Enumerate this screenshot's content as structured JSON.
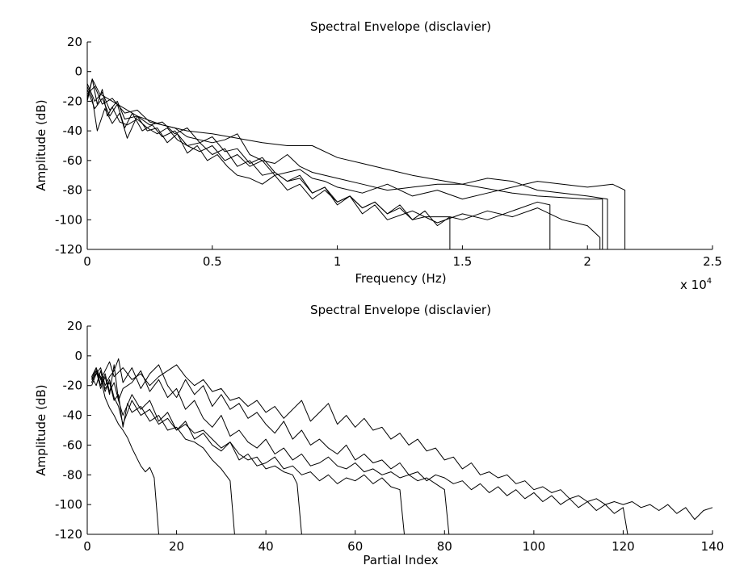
{
  "chart_data": [
    {
      "type": "line",
      "title": "Spectral Envelope (disclavier)",
      "xlabel": "Frequency (Hz)",
      "ylabel": "Amplitude (dB)",
      "x_multiplier": "x 10",
      "x_multiplier_exp": "4",
      "xlim": [
        0,
        2.5
      ],
      "ylim": [
        -120,
        20
      ],
      "xticks": [
        0,
        0.5,
        1,
        1.5,
        2,
        2.5
      ],
      "xtick_labels": [
        "0",
        "0.5",
        "1",
        "1.5",
        "2",
        "2.5"
      ],
      "yticks": [
        20,
        0,
        -20,
        -40,
        -60,
        -80,
        -100,
        -120
      ],
      "ytick_labels": [
        "20",
        "0",
        "-20",
        "-40",
        "-60",
        "-80",
        "-100",
        "-120"
      ],
      "series": [
        {
          "x": [
            0.0,
            0.02,
            0.05,
            0.1,
            0.15,
            0.2,
            0.25,
            0.3,
            0.35,
            0.4,
            0.5,
            0.6,
            0.7,
            0.8,
            0.9,
            1.0,
            1.1,
            1.2,
            1.3,
            1.4,
            1.5,
            1.6,
            1.7,
            1.8,
            1.9,
            2.0,
            2.06,
            2.06
          ],
          "y": [
            -20,
            -5,
            -15,
            -20,
            -25,
            -30,
            -33,
            -36,
            -38,
            -40,
            -42,
            -45,
            -48,
            -50,
            -50,
            -58,
            -62,
            -66,
            -70,
            -73,
            -76,
            -79,
            -82,
            -84,
            -85,
            -86,
            -86,
            -120
          ]
        },
        {
          "x": [
            0.0,
            0.03,
            0.06,
            0.1,
            0.15,
            0.2,
            0.25,
            0.3,
            0.35,
            0.4,
            0.45,
            0.5,
            0.55,
            0.6,
            0.65,
            0.7,
            0.75,
            0.8,
            0.85,
            0.9,
            1.0,
            1.1,
            1.2,
            1.3,
            1.4,
            1.5,
            1.6,
            1.7,
            1.8,
            1.9,
            2.0,
            2.08,
            2.08
          ],
          "y": [
            -15,
            -10,
            -22,
            -18,
            -28,
            -26,
            -34,
            -36,
            -38,
            -44,
            -46,
            -48,
            -46,
            -42,
            -56,
            -60,
            -62,
            -56,
            -64,
            -68,
            -72,
            -76,
            -80,
            -78,
            -76,
            -76,
            -72,
            -74,
            -80,
            -82,
            -84,
            -86,
            -120
          ]
        },
        {
          "x": [
            0.0,
            0.02,
            0.04,
            0.07,
            0.1,
            0.13,
            0.16,
            0.2,
            0.24,
            0.28,
            0.32,
            0.36,
            0.4,
            0.44,
            0.48,
            0.52,
            0.56,
            0.6,
            0.65,
            0.7,
            0.75,
            0.8,
            0.85,
            0.9,
            0.95,
            1.0,
            1.05,
            1.1,
            1.15,
            1.2,
            1.25,
            1.3,
            1.35,
            1.4,
            1.45,
            1.45
          ],
          "y": [
            -10,
            -18,
            -40,
            -25,
            -35,
            -28,
            -45,
            -30,
            -40,
            -38,
            -48,
            -42,
            -55,
            -50,
            -60,
            -56,
            -64,
            -70,
            -72,
            -76,
            -70,
            -80,
            -76,
            -86,
            -80,
            -88,
            -84,
            -92,
            -88,
            -96,
            -92,
            -100,
            -98,
            -98,
            -98,
            -120
          ]
        },
        {
          "x": [
            0.0,
            0.03,
            0.06,
            0.09,
            0.12,
            0.15,
            0.18,
            0.22,
            0.26,
            0.3,
            0.35,
            0.4,
            0.45,
            0.5,
            0.55,
            0.6,
            0.65,
            0.7,
            0.75,
            0.8,
            0.85,
            0.9,
            0.95,
            1.0,
            1.05,
            1.1,
            1.15,
            1.2,
            1.3,
            1.4,
            1.5,
            1.6,
            1.7,
            1.8,
            1.85,
            1.85
          ],
          "y": [
            -12,
            -25,
            -18,
            -30,
            -22,
            -38,
            -28,
            -40,
            -36,
            -44,
            -40,
            -50,
            -48,
            -56,
            -52,
            -64,
            -60,
            -70,
            -68,
            -74,
            -72,
            -82,
            -78,
            -90,
            -84,
            -96,
            -90,
            -100,
            -94,
            -102,
            -96,
            -100,
            -94,
            -88,
            -90,
            -120
          ]
        },
        {
          "x": [
            0.0,
            0.03,
            0.06,
            0.09,
            0.12,
            0.15,
            0.2,
            0.25,
            0.3,
            0.35,
            0.4,
            0.45,
            0.5,
            0.55,
            0.6,
            0.65,
            0.7,
            0.75,
            0.8,
            0.85,
            0.9,
            0.95,
            1.0,
            1.05,
            1.1,
            1.15,
            1.2,
            1.25,
            1.3,
            1.35,
            1.4,
            1.45,
            1.5,
            1.6,
            1.7,
            1.8,
            1.9,
            2.0,
            2.05,
            2.05
          ],
          "y": [
            -8,
            -20,
            -14,
            -26,
            -20,
            -32,
            -30,
            -36,
            -34,
            -42,
            -38,
            -48,
            -44,
            -54,
            -52,
            -62,
            -58,
            -68,
            -74,
            -70,
            -82,
            -78,
            -88,
            -84,
            -92,
            -88,
            -96,
            -90,
            -100,
            -94,
            -104,
            -98,
            -100,
            -94,
            -98,
            -92,
            -100,
            -104,
            -112,
            -120
          ]
        },
        {
          "x": [
            0.0,
            0.02,
            0.04,
            0.06,
            0.08,
            0.1,
            0.13,
            0.16,
            0.2,
            0.24,
            0.28,
            0.32,
            0.36,
            0.4,
            0.45,
            0.5,
            0.55,
            0.6,
            0.65,
            0.7,
            0.75,
            0.8,
            0.85,
            0.9,
            0.95,
            1.0,
            1.1,
            1.2,
            1.3,
            1.4,
            1.5,
            1.6,
            1.7,
            1.8,
            1.9,
            2.0,
            2.1,
            2.15,
            2.15
          ],
          "y": [
            -18,
            -5,
            -22,
            -12,
            -30,
            -24,
            -34,
            -36,
            -32,
            -38,
            -42,
            -38,
            -46,
            -50,
            -54,
            -50,
            -60,
            -56,
            -64,
            -60,
            -70,
            -68,
            -66,
            -72,
            -74,
            -78,
            -82,
            -76,
            -84,
            -80,
            -86,
            -82,
            -78,
            -74,
            -76,
            -78,
            -76,
            -80,
            -120
          ]
        }
      ]
    },
    {
      "type": "line",
      "title": "Spectral Envelope (disclavier)",
      "xlabel": "Partial Index",
      "ylabel": "Amplitude (dB)",
      "xlim": [
        0,
        140
      ],
      "ylim": [
        -120,
        20
      ],
      "xticks": [
        0,
        20,
        40,
        60,
        80,
        100,
        120,
        140
      ],
      "xtick_labels": [
        "0",
        "20",
        "40",
        "60",
        "80",
        "100",
        "120",
        "140"
      ],
      "yticks": [
        20,
        0,
        -20,
        -40,
        -60,
        -80,
        -100,
        -120
      ],
      "ytick_labels": [
        "20",
        "0",
        "-20",
        "-40",
        "-60",
        "-80",
        "-100",
        "-120"
      ],
      "series": [
        {
          "x": [
            1,
            2,
            3,
            4,
            5,
            6,
            7,
            8,
            9,
            10,
            11,
            12,
            13,
            14,
            15,
            16
          ],
          "y": [
            -20,
            -12,
            -15,
            -28,
            -35,
            -40,
            -46,
            -50,
            -55,
            -62,
            -68,
            -74,
            -78,
            -75,
            -82,
            -120
          ]
        },
        {
          "x": [
            1,
            2,
            3,
            4,
            5,
            6,
            7,
            8,
            9,
            10,
            12,
            14,
            16,
            18,
            20,
            22,
            24,
            26,
            28,
            30,
            31,
            32,
            33
          ],
          "y": [
            -18,
            -10,
            -14,
            -22,
            -18,
            -30,
            -26,
            -48,
            -32,
            -38,
            -34,
            -44,
            -40,
            -50,
            -48,
            -56,
            -58,
            -62,
            -70,
            -76,
            -80,
            -84,
            -120
          ]
        },
        {
          "x": [
            1,
            2,
            3,
            4,
            5,
            6,
            7,
            8,
            10,
            12,
            14,
            16,
            18,
            20,
            22,
            24,
            26,
            28,
            30,
            32,
            34,
            36,
            38,
            40,
            42,
            44,
            46,
            47,
            48
          ],
          "y": [
            -16,
            -8,
            -20,
            -12,
            -24,
            -18,
            -30,
            -40,
            -26,
            -36,
            -30,
            -44,
            -38,
            -50,
            -46,
            -52,
            -50,
            -56,
            -62,
            -58,
            -66,
            -70,
            -68,
            -76,
            -74,
            -78,
            -80,
            -86,
            -120
          ]
        },
        {
          "x": [
            1,
            2,
            3,
            4,
            5,
            6,
            7,
            8,
            10,
            12,
            14,
            16,
            18,
            20,
            22,
            24,
            26,
            28,
            30,
            32,
            34,
            36,
            38,
            40,
            42,
            44,
            46,
            48,
            50,
            52,
            54,
            56,
            58,
            60,
            62,
            64,
            66,
            68,
            70,
            71
          ],
          "y": [
            -14,
            -20,
            -10,
            -24,
            -16,
            -28,
            -34,
            -46,
            -30,
            -40,
            -36,
            -46,
            -42,
            -50,
            -44,
            -56,
            -52,
            -60,
            -64,
            -58,
            -70,
            -66,
            -74,
            -72,
            -68,
            -76,
            -74,
            -80,
            -78,
            -84,
            -80,
            -86,
            -82,
            -84,
            -80,
            -86,
            -82,
            -88,
            -90,
            -120
          ]
        },
        {
          "x": [
            1,
            2,
            3,
            4,
            5,
            6,
            7,
            8,
            10,
            12,
            14,
            16,
            18,
            20,
            22,
            24,
            26,
            28,
            30,
            32,
            34,
            36,
            38,
            40,
            42,
            44,
            46,
            48,
            50,
            52,
            54,
            56,
            58,
            60,
            62,
            64,
            66,
            68,
            70,
            72,
            74,
            76,
            78,
            80,
            81
          ],
          "y": [
            -18,
            -10,
            -22,
            -14,
            -26,
            -6,
            -30,
            -22,
            -18,
            -10,
            -24,
            -16,
            -28,
            -22,
            -36,
            -30,
            -42,
            -48,
            -40,
            -54,
            -50,
            -58,
            -62,
            -56,
            -66,
            -62,
            -70,
            -66,
            -74,
            -72,
            -68,
            -74,
            -76,
            -72,
            -78,
            -76,
            -80,
            -78,
            -82,
            -80,
            -84,
            -82,
            -86,
            -90,
            -120
          ]
        },
        {
          "x": [
            1,
            2,
            3,
            4,
            5,
            6,
            7,
            8,
            10,
            12,
            14,
            16,
            18,
            20,
            22,
            24,
            26,
            28,
            30,
            32,
            34,
            36,
            38,
            40,
            42,
            44,
            46,
            48,
            50,
            52,
            54,
            56,
            58,
            60,
            62,
            64,
            66,
            68,
            70,
            72,
            74,
            76,
            78,
            80,
            82,
            84,
            86,
            88,
            90,
            92,
            94,
            96,
            98,
            100,
            102,
            104,
            106,
            108,
            110,
            112,
            114,
            116,
            118,
            120,
            121
          ],
          "y": [
            -16,
            -12,
            -8,
            -20,
            -14,
            -10,
            -2,
            -18,
            -8,
            -22,
            -12,
            -6,
            -20,
            -28,
            -16,
            -26,
            -20,
            -34,
            -26,
            -36,
            -32,
            -42,
            -38,
            -46,
            -52,
            -44,
            -56,
            -50,
            -60,
            -56,
            -62,
            -66,
            -60,
            -70,
            -66,
            -72,
            -70,
            -76,
            -72,
            -80,
            -78,
            -84,
            -80,
            -82,
            -86,
            -84,
            -90,
            -86,
            -92,
            -88,
            -94,
            -90,
            -96,
            -92,
            -98,
            -94,
            -100,
            -96,
            -102,
            -98,
            -104,
            -100,
            -106,
            -102,
            -120
          ]
        },
        {
          "x": [
            1,
            2,
            3,
            4,
            5,
            6,
            8,
            10,
            12,
            14,
            16,
            18,
            20,
            22,
            24,
            26,
            28,
            30,
            32,
            34,
            36,
            38,
            40,
            42,
            44,
            46,
            48,
            50,
            52,
            54,
            56,
            58,
            60,
            62,
            64,
            66,
            68,
            70,
            72,
            74,
            76,
            78,
            80,
            82,
            84,
            86,
            88,
            90,
            92,
            94,
            96,
            98,
            100,
            102,
            104,
            106,
            108,
            110,
            112,
            114,
            116,
            118,
            120,
            122,
            124,
            126,
            128,
            130,
            132,
            134,
            136,
            138,
            140
          ],
          "y": [
            -14,
            -8,
            -16,
            -10,
            -4,
            -14,
            -8,
            -16,
            -12,
            -20,
            -14,
            -10,
            -6,
            -14,
            -20,
            -16,
            -24,
            -22,
            -30,
            -28,
            -34,
            -30,
            -38,
            -34,
            -42,
            -36,
            -30,
            -44,
            -38,
            -32,
            -46,
            -40,
            -48,
            -42,
            -50,
            -48,
            -56,
            -52,
            -60,
            -56,
            -64,
            -62,
            -70,
            -68,
            -76,
            -72,
            -80,
            -78,
            -82,
            -80,
            -86,
            -84,
            -90,
            -88,
            -92,
            -90,
            -96,
            -94,
            -98,
            -96,
            -100,
            -98,
            -100,
            -98,
            -102,
            -100,
            -104,
            -100,
            -106,
            -102,
            -110,
            -104,
            -102
          ]
        }
      ]
    }
  ]
}
